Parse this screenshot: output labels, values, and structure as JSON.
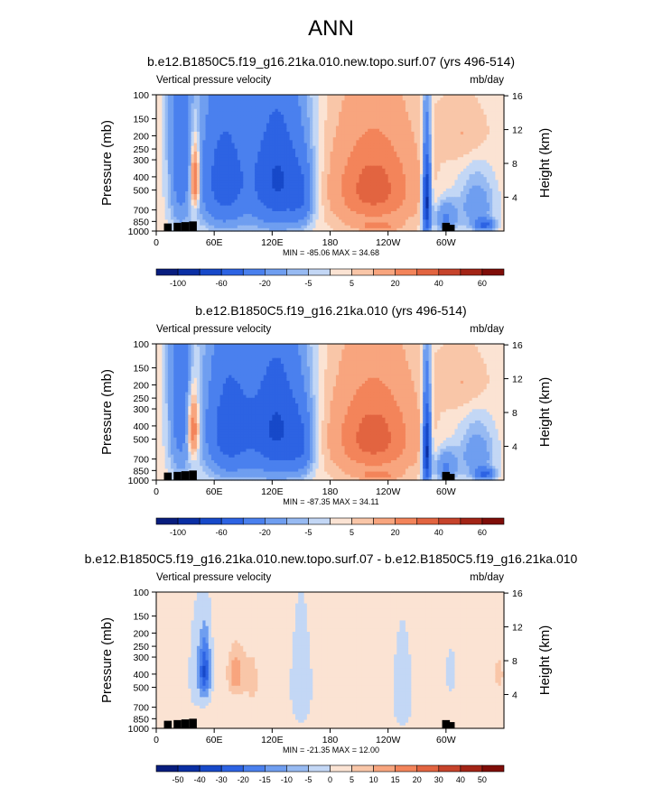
{
  "page_title": "ANN",
  "chart_data": [
    {
      "type": "heatmap",
      "title": "b.e12.B1850C5.f19_g16.21ka.010.new.topo.surf.07 (yrs 496-514)",
      "left_label": "Vertical pressure velocity",
      "units": "mb/day",
      "ylabel": "Pressure (mb)",
      "ylabel_right": "Height (km)",
      "x_ticks": [
        "0",
        "60E",
        "120E",
        "180",
        "120W",
        "60W"
      ],
      "x_tick_lons": [
        0,
        60,
        120,
        180,
        240,
        300
      ],
      "xlim": [
        0,
        360
      ],
      "y_ticks": [
        "100",
        "150",
        "200",
        "250",
        "300",
        "400",
        "500",
        "700",
        "850",
        "1000"
      ],
      "y_tick_values": [
        100,
        150,
        200,
        250,
        300,
        400,
        500,
        700,
        850,
        1000
      ],
      "ylim": [
        100,
        1000
      ],
      "height_ticks": [
        "16",
        "12",
        "8",
        "4"
      ],
      "height_tick_values": [
        16,
        12,
        8,
        4
      ],
      "stats": "MIN = -85.06  MAX =  34.68",
      "colorbar_labels": [
        "-100",
        "-60",
        "-20",
        "-5",
        "5",
        "20",
        "40",
        "60"
      ],
      "colorbar_levels": [
        -120,
        -100,
        -80,
        -60,
        -40,
        -20,
        -10,
        -5,
        0,
        5,
        10,
        20,
        30,
        40,
        50,
        60
      ],
      "features": [
        {
          "lon": 25,
          "p": 180,
          "dlon": 12,
          "dp": 650,
          "v": -35
        },
        {
          "lon": 40,
          "p": 420,
          "dlon": 5,
          "dp": 220,
          "v": 45
        },
        {
          "lon": 70,
          "p": 420,
          "dlon": 25,
          "dp": 450,
          "v": -55
        },
        {
          "lon": 125,
          "p": 420,
          "dlon": 28,
          "dp": 450,
          "v": -65
        },
        {
          "lon": 150,
          "p": 560,
          "dlon": 12,
          "dp": 300,
          "v": -25
        },
        {
          "lon": 225,
          "p": 480,
          "dlon": 42,
          "dp": 380,
          "v": 32
        },
        {
          "lon": 230,
          "p": 920,
          "dlon": 20,
          "dp": 60,
          "v": 15
        },
        {
          "lon": 280,
          "p": 600,
          "dlon": 4,
          "dp": 420,
          "v": -90
        },
        {
          "lon": 300,
          "p": 800,
          "dlon": 12,
          "dp": 220,
          "v": -25
        },
        {
          "lon": 332,
          "p": 650,
          "dlon": 18,
          "dp": 300,
          "v": -20
        },
        {
          "lon": 320,
          "p": 200,
          "dlon": 25,
          "dp": 100,
          "v": 8
        },
        {
          "lon": 340,
          "p": 900,
          "dlon": 10,
          "dp": 80,
          "v": -45
        }
      ]
    },
    {
      "type": "heatmap",
      "title": "b.e12.B1850C5.f19_g16.21ka.010 (yrs 496-514)",
      "left_label": "Vertical pressure velocity",
      "units": "mb/day",
      "ylabel": "Pressure (mb)",
      "ylabel_right": "Height (km)",
      "x_ticks": [
        "0",
        "60E",
        "120E",
        "180",
        "120W",
        "60W"
      ],
      "x_tick_lons": [
        0,
        60,
        120,
        180,
        240,
        300
      ],
      "xlim": [
        0,
        360
      ],
      "y_ticks": [
        "100",
        "150",
        "200",
        "250",
        "300",
        "400",
        "500",
        "700",
        "850",
        "1000"
      ],
      "y_tick_values": [
        100,
        150,
        200,
        250,
        300,
        400,
        500,
        700,
        850,
        1000
      ],
      "ylim": [
        100,
        1000
      ],
      "height_ticks": [
        "16",
        "12",
        "8",
        "4"
      ],
      "height_tick_values": [
        16,
        12,
        8,
        4
      ],
      "stats": "MIN = -87.35  MAX =  34.11",
      "colorbar_labels": [
        "-100",
        "-60",
        "-20",
        "-5",
        "5",
        "20",
        "40",
        "60"
      ],
      "colorbar_levels": [
        -120,
        -100,
        -80,
        -60,
        -40,
        -20,
        -10,
        -5,
        0,
        5,
        10,
        20,
        30,
        40,
        50,
        60
      ],
      "features": [
        {
          "lon": 25,
          "p": 180,
          "dlon": 12,
          "dp": 650,
          "v": -35
        },
        {
          "lon": 38,
          "p": 420,
          "dlon": 6,
          "dp": 220,
          "v": 38
        },
        {
          "lon": 75,
          "p": 420,
          "dlon": 25,
          "dp": 450,
          "v": -55
        },
        {
          "lon": 125,
          "p": 420,
          "dlon": 28,
          "dp": 450,
          "v": -65
        },
        {
          "lon": 150,
          "p": 560,
          "dlon": 12,
          "dp": 300,
          "v": -25
        },
        {
          "lon": 225,
          "p": 480,
          "dlon": 42,
          "dp": 380,
          "v": 32
        },
        {
          "lon": 230,
          "p": 920,
          "dlon": 20,
          "dp": 60,
          "v": 15
        },
        {
          "lon": 280,
          "p": 600,
          "dlon": 4,
          "dp": 420,
          "v": -90
        },
        {
          "lon": 300,
          "p": 800,
          "dlon": 12,
          "dp": 220,
          "v": -25
        },
        {
          "lon": 332,
          "p": 650,
          "dlon": 18,
          "dp": 300,
          "v": -20
        },
        {
          "lon": 320,
          "p": 200,
          "dlon": 25,
          "dp": 100,
          "v": 8
        },
        {
          "lon": 340,
          "p": 900,
          "dlon": 10,
          "dp": 80,
          "v": -45
        }
      ]
    },
    {
      "type": "heatmap",
      "title": "b.e12.B1850C5.f19_g16.21ka.010.new.topo.surf.07 - b.e12.B1850C5.f19_g16.21ka.010",
      "left_label": "Vertical pressure velocity",
      "units": "mb/day",
      "ylabel": "Pressure (mb)",
      "ylabel_right": "Height (km)",
      "x_ticks": [
        "0",
        "60E",
        "120E",
        "180",
        "120W",
        "60W"
      ],
      "x_tick_lons": [
        0,
        60,
        120,
        180,
        240,
        300
      ],
      "xlim": [
        0,
        360
      ],
      "y_ticks": [
        "100",
        "150",
        "200",
        "250",
        "300",
        "400",
        "500",
        "700",
        "850",
        "1000"
      ],
      "y_tick_values": [
        100,
        150,
        200,
        250,
        300,
        400,
        500,
        700,
        850,
        1000
      ],
      "ylim": [
        100,
        1000
      ],
      "height_ticks": [
        "16",
        "12",
        "8",
        "4"
      ],
      "height_tick_values": [
        16,
        12,
        8,
        4
      ],
      "stats": "MIN = -21.35  MAX =  12.00",
      "colorbar_labels": [
        "-50",
        "-40",
        "-30",
        "-20",
        "-15",
        "-10",
        "-5",
        "0",
        "5",
        "10",
        "15",
        "20",
        "30",
        "40",
        "50"
      ],
      "colorbar_levels": [
        -50,
        -40,
        -30,
        -20,
        -15,
        -10,
        -5,
        0,
        5,
        10,
        15,
        20,
        30,
        40,
        50
      ],
      "features": [
        {
          "lon": 50,
          "p": 380,
          "dlon": 6,
          "dp": 200,
          "v": -22
        },
        {
          "lon": 40,
          "p": 400,
          "dlon": 6,
          "dp": 260,
          "v": -4
        },
        {
          "lon": 82,
          "p": 400,
          "dlon": 8,
          "dp": 150,
          "v": 12
        },
        {
          "lon": 100,
          "p": 450,
          "dlon": 12,
          "dp": 400,
          "v": 4
        },
        {
          "lon": 150,
          "p": 500,
          "dlon": 12,
          "dp": 450,
          "v": -3.5
        },
        {
          "lon": 200,
          "p": 500,
          "dlon": 15,
          "dp": 400,
          "v": 3.5
        },
        {
          "lon": 255,
          "p": 550,
          "dlon": 10,
          "dp": 400,
          "v": -4
        },
        {
          "lon": 305,
          "p": 400,
          "dlon": 4,
          "dp": 120,
          "v": -6
        },
        {
          "lon": 340,
          "p": 450,
          "dlon": 8,
          "dp": 300,
          "v": 3.5
        },
        {
          "lon": 355,
          "p": 400,
          "dlon": 4,
          "dp": 100,
          "v": 8
        }
      ]
    }
  ],
  "colors": {
    "palette": [
      "#081d7e",
      "#0a2fa4",
      "#1749c9",
      "#2d63e3",
      "#4a80ee",
      "#6f9ef0",
      "#97baf2",
      "#c3d7f5",
      "#fbe3d3",
      "#f9c6a8",
      "#f8a57e",
      "#f3845a",
      "#e26440",
      "#c6432b",
      "#a32416",
      "#7f0d08"
    ],
    "terrain": "#000000"
  }
}
